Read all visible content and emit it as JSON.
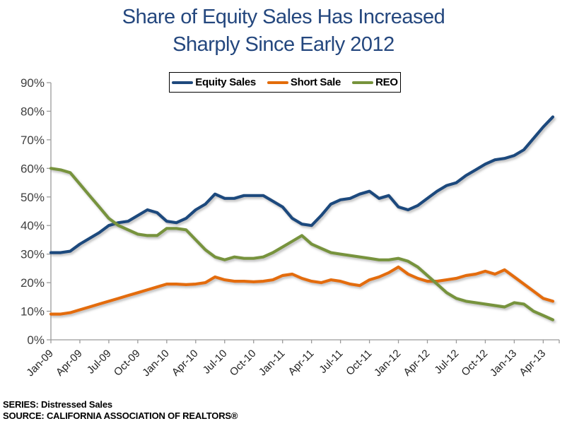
{
  "title": {
    "line1": "Share of Equity Sales Has Increased",
    "line2": "Sharply Since Early 2012"
  },
  "footer": {
    "series": "SERIES: Distressed Sales",
    "source": "SOURCE: CALIFORNIA ASSOCIATION OF REALTORS®"
  },
  "colors": {
    "title_text": "#24477E",
    "axis": "#9B9B9B",
    "equity_sales": "#1F497D",
    "short_sale": "#E36C0A",
    "reo": "#77933C"
  },
  "chart_data": {
    "type": "line",
    "x_start": "Jan-09",
    "x_end": "May-13",
    "x_interval": "monthly",
    "x_tick_labels": [
      "Jan-09",
      "Apr-09",
      "Jul-09",
      "Oct-09",
      "Jan-10",
      "Apr-10",
      "Jul-10",
      "Oct-10",
      "Jan-11",
      "Apr-11",
      "Jul-11",
      "Oct-11",
      "Jan-12",
      "Apr-12",
      "Jul-12",
      "Oct-12",
      "Jan-13",
      "Apr-13"
    ],
    "y_tick_labels": [
      "0%",
      "10%",
      "20%",
      "30%",
      "40%",
      "50%",
      "60%",
      "70%",
      "80%",
      "90%"
    ],
    "ylim": [
      0,
      90
    ],
    "grid": false,
    "legend_position": "top-center",
    "series": [
      {
        "name": "Equity Sales",
        "color": "#1F497D",
        "values": [
          30.5,
          30.5,
          31,
          33.5,
          35.5,
          37.5,
          40,
          41,
          41.5,
          43.5,
          45.5,
          44.5,
          41.5,
          41,
          42.5,
          45.5,
          47.5,
          51,
          49.5,
          49.5,
          50.5,
          50.5,
          50.5,
          48.5,
          46.5,
          42.5,
          40.5,
          40,
          43.5,
          47.5,
          49,
          49.5,
          51,
          52,
          49.5,
          50.5,
          46.5,
          45.5,
          47,
          49.5,
          52,
          54,
          55,
          57.5,
          59.5,
          61.5,
          63,
          63.5,
          64.5,
          66.5,
          70.5,
          74.5,
          78
        ]
      },
      {
        "name": "Short Sale",
        "color": "#E36C0A",
        "values": [
          9,
          9,
          9.5,
          10.5,
          11.5,
          12.5,
          13.5,
          14.5,
          15.5,
          16.5,
          17.5,
          18.5,
          19.5,
          19.5,
          19.3,
          19.5,
          20,
          22,
          21,
          20.5,
          20.5,
          20.3,
          20.5,
          21,
          22.5,
          23,
          21.5,
          20.5,
          20,
          21,
          20.5,
          19.5,
          19,
          21,
          22,
          23.5,
          25.5,
          23,
          21.5,
          20.5,
          20.5,
          21,
          21.5,
          22.5,
          23,
          24,
          23,
          24.5,
          22,
          19.5,
          17,
          14.5,
          13.5
        ]
      },
      {
        "name": "REO",
        "color": "#77933C",
        "values": [
          60,
          59.5,
          58.5,
          54.5,
          50.5,
          46.5,
          42.5,
          40,
          38.5,
          37,
          36.5,
          36.5,
          39,
          39,
          38.5,
          35,
          31.5,
          29,
          28,
          29,
          28.5,
          28.5,
          29,
          30.5,
          32.5,
          34.5,
          36.5,
          33.5,
          32,
          30.5,
          30,
          29.5,
          29,
          28.5,
          28,
          28,
          28.5,
          27.5,
          25.5,
          22.5,
          19.5,
          16.5,
          14.5,
          13.5,
          13,
          12.5,
          12,
          11.5,
          13,
          12.5,
          10,
          8.5,
          7
        ]
      }
    ]
  }
}
